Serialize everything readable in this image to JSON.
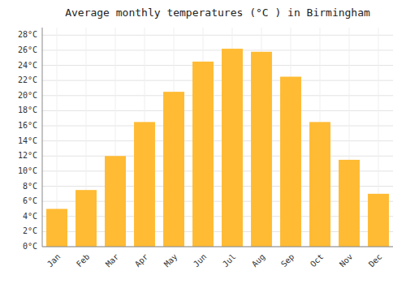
{
  "chart_data": {
    "type": "bar",
    "title": "Average monthly temperatures (°C ) in Birmingham",
    "categories": [
      "Jan",
      "Feb",
      "Mar",
      "Apr",
      "May",
      "Jun",
      "Jul",
      "Aug",
      "Sep",
      "Oct",
      "Nov",
      "Dec"
    ],
    "values": [
      5.0,
      7.5,
      12.0,
      16.5,
      20.5,
      24.5,
      26.2,
      25.8,
      22.5,
      16.5,
      11.5,
      7.0
    ],
    "color": "#FFBB33",
    "ylim": [
      0,
      29
    ],
    "yticks": [
      {
        "value": 0,
        "label": "0°C"
      },
      {
        "value": 2,
        "label": "2°C"
      },
      {
        "value": 4,
        "label": "4°C"
      },
      {
        "value": 6,
        "label": "6°C"
      },
      {
        "value": 8,
        "label": "8°C"
      },
      {
        "value": 10,
        "label": "10°C"
      },
      {
        "value": 12,
        "label": "12°C"
      },
      {
        "value": 14,
        "label": "14°C"
      },
      {
        "value": 16,
        "label": "16°C"
      },
      {
        "value": 18,
        "label": "18°C"
      },
      {
        "value": 20,
        "label": "20°C"
      },
      {
        "value": 22,
        "label": "22°C"
      },
      {
        "value": 24,
        "label": "24°C"
      },
      {
        "value": 26,
        "label": "26°C"
      },
      {
        "value": 28,
        "label": "28°C"
      }
    ],
    "grid": true
  }
}
